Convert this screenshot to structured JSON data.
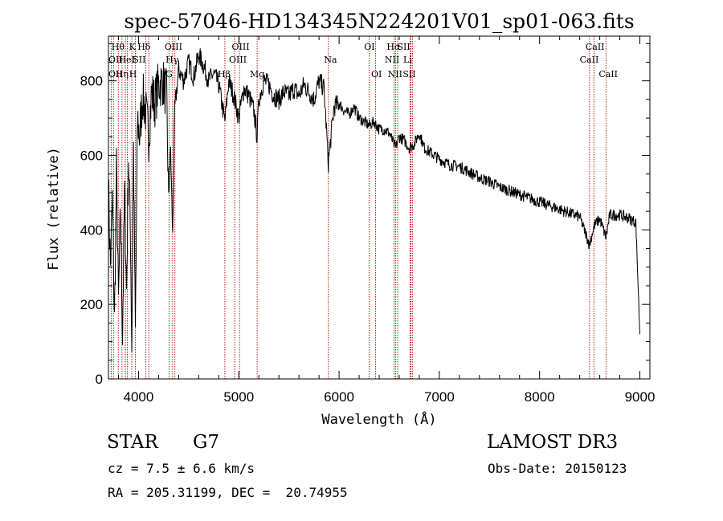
{
  "chart_data": {
    "type": "line",
    "title": "spec-57046-HD134345N224201V01_sp01-063.fits",
    "xlabel": "Wavelength (Å)",
    "ylabel": "Flux (relative)",
    "xlim": [
      3700,
      9100
    ],
    "ylim": [
      0,
      920
    ],
    "xticks": [
      4000,
      5000,
      6000,
      7000,
      8000,
      9000
    ],
    "yticks": [
      0,
      200,
      400,
      600,
      800
    ],
    "line_color": "#000000",
    "marker_color": "#b00000",
    "series": [
      {
        "x": [
          3700,
          3720,
          3740,
          3760,
          3780,
          3800,
          3820,
          3840,
          3860,
          3880,
          3900,
          3920,
          3933,
          3950,
          3968,
          3990,
          4010,
          4040,
          4070,
          4102,
          4130,
          4160,
          4200,
          4240,
          4280,
          4300,
          4320,
          4340,
          4360,
          4400,
          4450,
          4500,
          4550,
          4600,
          4650,
          4700,
          4750,
          4800,
          4861,
          4900,
          4950,
          5000,
          5050,
          5100,
          5150,
          5183,
          5200,
          5250,
          5300,
          5350,
          5400,
          5450,
          5500,
          5550,
          5600,
          5650,
          5700,
          5750,
          5800,
          5850,
          5893,
          5950,
          6000,
          6050,
          6100,
          6150,
          6200,
          6250,
          6300,
          6350,
          6400,
          6450,
          6500,
          6563,
          6600,
          6650,
          6700,
          6750,
          6800,
          6850,
          6900,
          6950,
          7000,
          7100,
          7200,
          7300,
          7400,
          7500,
          7600,
          7700,
          7800,
          7900,
          8000,
          8100,
          8200,
          8300,
          8400,
          8498,
          8542,
          8600,
          8662,
          8700,
          8800,
          8900,
          8960,
          9000
        ],
        "y": [
          520,
          300,
          480,
          150,
          560,
          200,
          450,
          120,
          500,
          240,
          600,
          380,
          90,
          620,
          120,
          700,
          650,
          760,
          720,
          650,
          770,
          740,
          790,
          800,
          760,
          480,
          620,
          380,
          720,
          830,
          800,
          850,
          810,
          870,
          840,
          800,
          820,
          790,
          690,
          800,
          760,
          700,
          780,
          760,
          720,
          650,
          750,
          800,
          790,
          760,
          750,
          770,
          760,
          780,
          760,
          790,
          770,
          750,
          800,
          780,
          580,
          730,
          740,
          720,
          710,
          730,
          700,
          690,
          680,
          690,
          670,
          670,
          660,
          620,
          650,
          640,
          620,
          630,
          660,
          620,
          610,
          600,
          590,
          575,
          570,
          555,
          540,
          530,
          515,
          505,
          495,
          485,
          475,
          465,
          455,
          445,
          435,
          360,
          410,
          430,
          380,
          440,
          440,
          430,
          420,
          120
        ]
      }
    ],
    "lines": [
      {
        "x": 3727,
        "labels": [
          "OII"
        ]
      },
      {
        "x": 3750,
        "labels": [
          "Hθ"
        ]
      },
      {
        "x": 3798,
        "labels": [
          "Hη"
        ]
      },
      {
        "x": 3835,
        "labels": [
          "Hη"
        ]
      },
      {
        "x": 3869,
        "labels": [
          "HeI"
        ]
      },
      {
        "x": 3889,
        "labels": [
          "HeI"
        ]
      },
      {
        "x": 3933,
        "labels": [
          "K"
        ]
      },
      {
        "x": 3968,
        "labels": [
          "H"
        ]
      },
      {
        "x": 4072,
        "labels": [
          "SII"
        ]
      },
      {
        "x": 4102,
        "labels": [
          "Hδ"
        ]
      },
      {
        "x": 4304,
        "labels": [
          "G"
        ]
      },
      {
        "x": 4340,
        "labels": [
          "Hγ"
        ]
      },
      {
        "x": 4363,
        "labels": [
          "OIII"
        ]
      },
      {
        "x": 4861,
        "labels": [
          "Hβ"
        ]
      },
      {
        "x": 4959,
        "labels": [
          "OIII"
        ]
      },
      {
        "x": 5007,
        "labels": [
          "OIII"
        ]
      },
      {
        "x": 5183,
        "labels": [
          "Mg"
        ]
      },
      {
        "x": 5893,
        "labels": [
          "Na"
        ]
      },
      {
        "x": 6300,
        "labels": [
          "OI"
        ]
      },
      {
        "x": 6364,
        "labels": [
          "OI"
        ]
      },
      {
        "x": 6548,
        "labels": [
          "NII"
        ]
      },
      {
        "x": 6563,
        "labels": [
          "Hα"
        ]
      },
      {
        "x": 6584,
        "labels": [
          "NII"
        ]
      },
      {
        "x": 6708,
        "labels": [
          "Li"
        ]
      },
      {
        "x": 6716,
        "labels": [
          "SII"
        ]
      },
      {
        "x": 6731,
        "labels": [
          "SII"
        ]
      },
      {
        "x": 8498,
        "labels": [
          "CaII"
        ]
      },
      {
        "x": 8542,
        "labels": [
          "CaII"
        ]
      },
      {
        "x": 8662,
        "labels": [
          "CaII"
        ]
      }
    ],
    "line_labels": [
      {
        "text": "Hθ",
        "x": 3730,
        "row": 0
      },
      {
        "text": "OII",
        "x": 3700,
        "row": 1
      },
      {
        "text": "OII",
        "x": 3700,
        "row": 2
      },
      {
        "text": "K",
        "x": 3905,
        "row": 0
      },
      {
        "text": "HeI",
        "x": 3800,
        "row": 1
      },
      {
        "text": "Hη",
        "x": 3770,
        "row": 2
      },
      {
        "text": "Hδ",
        "x": 3990,
        "row": 0
      },
      {
        "text": "SII",
        "x": 3942,
        "row": 1
      },
      {
        "text": "H",
        "x": 3906,
        "row": 2
      },
      {
        "text": "OIII",
        "x": 4260,
        "row": 0
      },
      {
        "text": "Hγ",
        "x": 4270,
        "row": 1
      },
      {
        "text": "G",
        "x": 4270,
        "row": 2
      },
      {
        "text": "OIII",
        "x": 4930,
        "row": 0
      },
      {
        "text": "OIII",
        "x": 4902,
        "row": 1
      },
      {
        "text": "Hβ",
        "x": 4790,
        "row": 2
      },
      {
        "text": "Mg",
        "x": 5110,
        "row": 2
      },
      {
        "text": "Na",
        "x": 5850,
        "row": 1
      },
      {
        "text": "OI",
        "x": 6250,
        "row": 0
      },
      {
        "text": "OI",
        "x": 6320,
        "row": 2
      },
      {
        "text": "Hα",
        "x": 6475,
        "row": 0
      },
      {
        "text": "SII",
        "x": 6580,
        "row": 0
      },
      {
        "text": "NII",
        "x": 6455,
        "row": 1
      },
      {
        "text": "Li",
        "x": 6640,
        "row": 1
      },
      {
        "text": "NII",
        "x": 6485,
        "row": 2
      },
      {
        "text": "SII",
        "x": 6635,
        "row": 2
      },
      {
        "text": "CaII",
        "x": 8458,
        "row": 0
      },
      {
        "text": "CaII",
        "x": 8400,
        "row": 1
      },
      {
        "text": "CaII",
        "x": 8590,
        "row": 2
      }
    ]
  },
  "info": {
    "object_type": "STAR",
    "subclass": "G7",
    "survey": "LAMOST DR3",
    "redshift": "cz = 7.5 ± 6.6 km/s",
    "obs_date": "Obs-Date: 20150123",
    "coords": "RA = 205.31199, DEC =  20.74955"
  }
}
